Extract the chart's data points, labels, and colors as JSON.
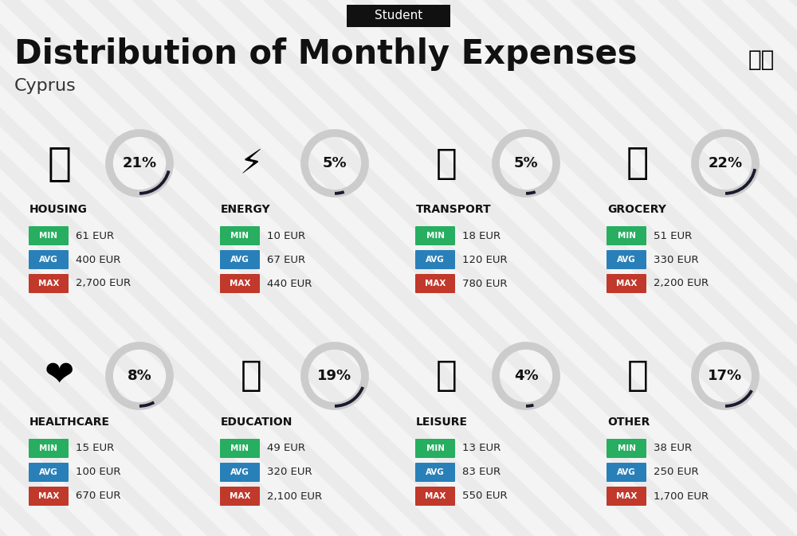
{
  "title": "Distribution of Monthly Expenses",
  "subtitle": "Student",
  "location": "Cyprus",
  "background_color": "#ebebeb",
  "stripe_color": "#ffffff",
  "categories": [
    {
      "name": "HOUSING",
      "percent": 21,
      "min": "61 EUR",
      "avg": "400 EUR",
      "max": "2,700 EUR",
      "row": 0,
      "col": 0
    },
    {
      "name": "ENERGY",
      "percent": 5,
      "min": "10 EUR",
      "avg": "67 EUR",
      "max": "440 EUR",
      "row": 0,
      "col": 1
    },
    {
      "name": "TRANSPORT",
      "percent": 5,
      "min": "18 EUR",
      "avg": "120 EUR",
      "max": "780 EUR",
      "row": 0,
      "col": 2
    },
    {
      "name": "GROCERY",
      "percent": 22,
      "min": "51 EUR",
      "avg": "330 EUR",
      "max": "2,200 EUR",
      "row": 0,
      "col": 3
    },
    {
      "name": "HEALTHCARE",
      "percent": 8,
      "min": "15 EUR",
      "avg": "100 EUR",
      "max": "670 EUR",
      "row": 1,
      "col": 0
    },
    {
      "name": "EDUCATION",
      "percent": 19,
      "min": "49 EUR",
      "avg": "320 EUR",
      "max": "2,100 EUR",
      "row": 1,
      "col": 1
    },
    {
      "name": "LEISURE",
      "percent": 4,
      "min": "13 EUR",
      "avg": "83 EUR",
      "max": "550 EUR",
      "row": 1,
      "col": 2
    },
    {
      "name": "OTHER",
      "percent": 17,
      "min": "38 EUR",
      "avg": "250 EUR",
      "max": "1,700 EUR",
      "row": 1,
      "col": 3
    }
  ],
  "min_color": "#27ae60",
  "avg_color": "#2980b9",
  "max_color": "#c0392b",
  "arc_filled_color": "#1a1a2e",
  "arc_empty_color": "#cccccc",
  "category_name_color": "#111111",
  "title_color": "#111111",
  "subtitle_bg": "#111111",
  "subtitle_text_color": "#ffffff",
  "value_text_color": "#222222"
}
